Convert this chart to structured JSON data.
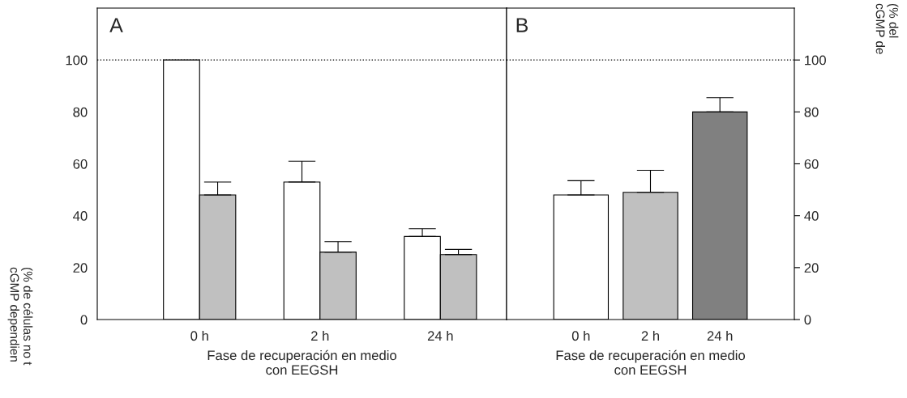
{
  "chart_data": [
    {
      "type": "bar",
      "categories": [
        "0 h",
        "2 h",
        "24 h"
      ],
      "series": [
        {
          "color": "#ffffff",
          "values": [
            100,
            53,
            32
          ],
          "errors": [
            null,
            [
              53,
              61
            ],
            [
              32,
              35
            ]
          ]
        },
        {
          "color": "#c0c0c0",
          "values": [
            48,
            26,
            25
          ],
          "errors": [
            [
              48,
              53
            ],
            [
              26,
              30
            ],
            [
              25,
              27
            ]
          ]
        }
      ],
      "ylim": [
        0,
        120
      ],
      "yticks": [
        0,
        20,
        40,
        60,
        80,
        100
      ],
      "ylabel": "(% de células no t\ncGMP dependien",
      "xlabel": "Fase de recuperación en medio\ncon EEGSH",
      "annotations": [
        "A"
      ],
      "ref_lines": [
        {
          "axis": "y",
          "value": 100,
          "line_style": "dotted",
          "color": "#000000"
        }
      ],
      "grid": false,
      "legend": false
    },
    {
      "type": "bar",
      "categories": [
        "0 h",
        "2 h",
        "24 h"
      ],
      "series": [
        {
          "axis": "y2",
          "colors": [
            "#ffffff",
            "#c0c0c0",
            "#808080"
          ],
          "values": [
            48,
            49,
            80
          ],
          "errors": [
            [
              48,
              53.5
            ],
            [
              49,
              57.5
            ],
            [
              80,
              85.5
            ]
          ]
        }
      ],
      "y2lim": [
        0,
        120
      ],
      "y2ticks": [
        0,
        20,
        40,
        60,
        80,
        100
      ],
      "y2label": "(% del\ncGMP de",
      "xlabel": "Fase de recuperación en medio\ncon EEGSH",
      "annotations": [
        "B"
      ],
      "ref_lines": [
        {
          "axis": "y2",
          "value": 100,
          "line_style": "dotted",
          "color": "#000000"
        }
      ],
      "grid": false,
      "legend": false
    }
  ]
}
